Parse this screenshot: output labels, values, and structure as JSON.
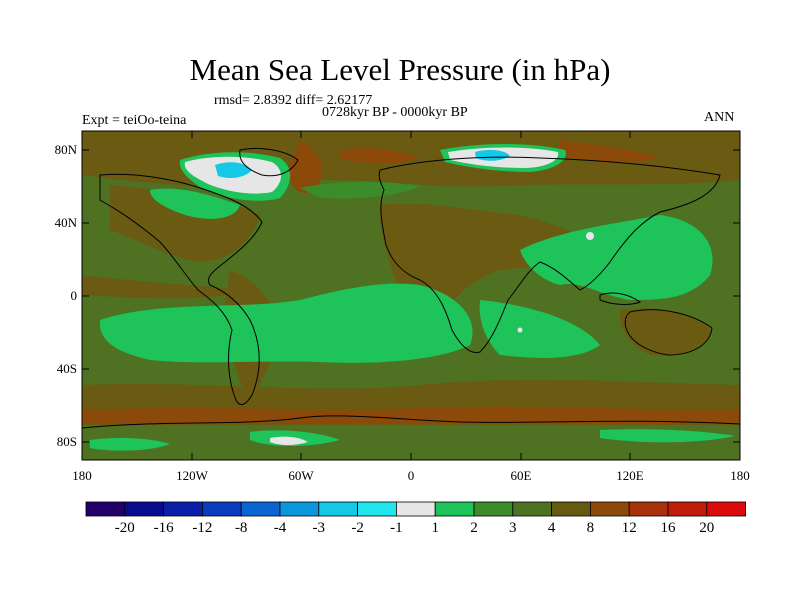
{
  "title": "Mean Sea Level Pressure (in hPa)",
  "stats_line": "rmsd= 2.8392 diff= 2.62177",
  "period_line": "0728kyr BP - 0000kyr BP",
  "experiment_line": "Expt = teiOo-teina",
  "season": "ANN",
  "lat_labels": [
    "80N",
    "40N",
    "0",
    "40S",
    "80S"
  ],
  "lon_labels": [
    "180",
    "120W",
    "60W",
    "0",
    "60E",
    "120E",
    "180"
  ],
  "colorbar": {
    "labels": [
      "-20",
      "-16",
      "-12",
      "-8",
      "-4",
      "-3",
      "-2",
      "-1",
      "1",
      "2",
      "3",
      "4",
      "8",
      "12",
      "16",
      "20"
    ],
    "colors": [
      "#22006a",
      "#0a0a90",
      "#0a1ea8",
      "#0a3cc0",
      "#0a64d2",
      "#0a96dc",
      "#14c8e6",
      "#22e6ee",
      "#e6e6e6",
      "#1ec35a",
      "#3c8c2a",
      "#4e7222",
      "#645a12",
      "#8c4a0a",
      "#a8320a",
      "#c01e0a",
      "#dc0a0a"
    ]
  },
  "palette": {
    "land_brown": "#6a5a12",
    "ocean_green": "#4e7222",
    "bright_green": "#1ec35a",
    "mid_green": "#3c8c2a",
    "rust": "#8c4a0a",
    "white": "#e6e6e6",
    "cyan": "#14c8e6"
  }
}
